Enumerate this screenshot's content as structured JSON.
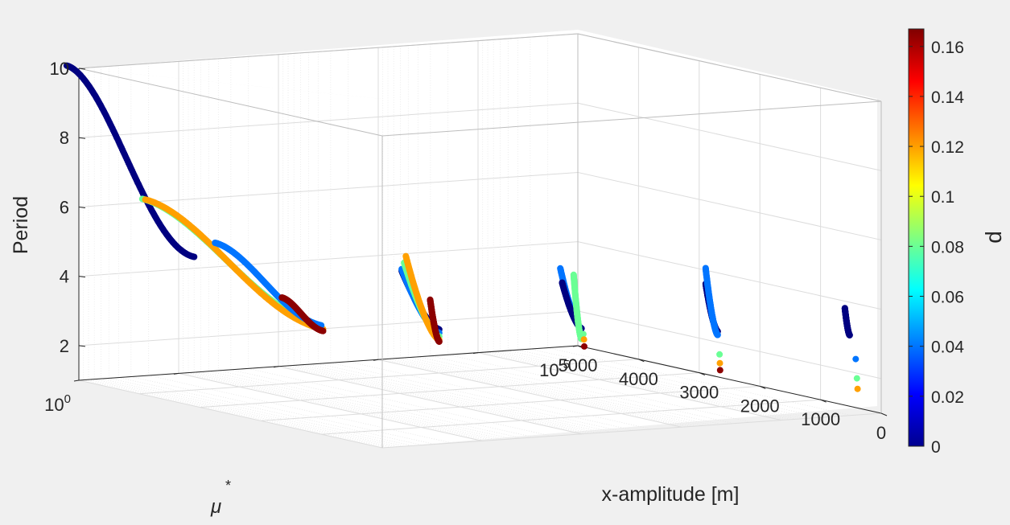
{
  "chart_data": {
    "type": "scatter3d",
    "title": "",
    "axes": {
      "x": {
        "label": "x-amplitude [m]",
        "range": [
          0,
          5000
        ],
        "ticks": [
          0,
          1000,
          2000,
          3000,
          4000,
          5000
        ],
        "tick_labels": [
          "0",
          "1000",
          "2000",
          "3000",
          "4000",
          "5000"
        ]
      },
      "y": {
        "label": "μ",
        "label_sup": "*",
        "scale": "log",
        "range_exp": [
          -5,
          0
        ],
        "ticks_exp": [
          0,
          -5
        ],
        "tick_bases": [
          "10",
          "10"
        ],
        "tick_exps": [
          "0",
          "-5"
        ]
      },
      "z": {
        "label": "Period",
        "range": [
          1,
          10
        ],
        "ticks": [
          2,
          4,
          6,
          8,
          10
        ],
        "tick_labels": [
          "2",
          "4",
          "6",
          "8",
          "10"
        ]
      }
    },
    "grid": true,
    "colorbar": {
      "label": "d",
      "range": [
        0,
        0.167
      ],
      "ticks": [
        0,
        0.02,
        0.04,
        0.06,
        0.08,
        0.1,
        0.12,
        0.14,
        0.16
      ],
      "tick_labels": [
        "0",
        "0.02",
        "0.04",
        "0.06",
        "0.08",
        "0.1",
        "0.12",
        "0.14",
        "0.16"
      ],
      "colormap": "jet"
    },
    "series": [
      {
        "name": "mu1e0-d0",
        "mu_exp": 0.0,
        "d": 0.0,
        "x_range": [
          5200,
          3100
        ],
        "p_start": 10.0,
        "p_end": 5.3,
        "shape": "s"
      },
      {
        "name": "mu1e-1-d0.08",
        "mu_exp": -1.0,
        "d": 0.08,
        "x_range": [
          5600,
          2650
        ],
        "p_start": 5.8,
        "p_end": 3.3,
        "shape": "s"
      },
      {
        "name": "mu1e-1-d0.12",
        "mu_exp": -1.0,
        "d": 0.12,
        "x_range": [
          5550,
          2620
        ],
        "p_start": 5.8,
        "p_end": 3.2,
        "shape": "s"
      },
      {
        "name": "mu1e-1-d0.04",
        "mu_exp": -1.0,
        "d": 0.04,
        "x_range": [
          4400,
          2650
        ],
        "p_start": 5.0,
        "p_end": 3.3,
        "shape": "s"
      },
      {
        "name": "mu1e-1-d0.16",
        "mu_exp": -1.0,
        "d": 0.165,
        "x_range": [
          3300,
          2620
        ],
        "p_start": 3.85,
        "p_end": 3.15,
        "shape": "s"
      },
      {
        "name": "mu1e-2-d0",
        "mu_exp": -2.0,
        "d": 0.0,
        "x_range": [
          2970,
          2350
        ],
        "p_start": 4.55,
        "p_end": 3.1,
        "shape": "c"
      },
      {
        "name": "mu1e-2-d0.04",
        "mu_exp": -2.0,
        "d": 0.04,
        "x_range": [
          2970,
          2350
        ],
        "p_start": 4.6,
        "p_end": 3.0,
        "shape": "c"
      },
      {
        "name": "mu1e-2-d0.08",
        "mu_exp": -2.0,
        "d": 0.08,
        "x_range": [
          2930,
          2350
        ],
        "p_start": 4.8,
        "p_end": 2.9,
        "shape": "c"
      },
      {
        "name": "mu1e-2-d0.12",
        "mu_exp": -2.0,
        "d": 0.12,
        "x_range": [
          2900,
          2350
        ],
        "p_start": 5.0,
        "p_end": 2.8,
        "shape": "c"
      },
      {
        "name": "mu1e-2-d0.165",
        "mu_exp": -2.0,
        "d": 0.165,
        "x_range": [
          2500,
          2350
        ],
        "p_start": 3.9,
        "p_end": 2.75,
        "shape": "c"
      },
      {
        "name": "mu1e-3-d0.04",
        "mu_exp": -3.0,
        "d": 0.04,
        "x_range": [
          2000,
          1650
        ],
        "p_start": 4.8,
        "p_end": 3.2,
        "shape": "c"
      },
      {
        "name": "mu1e-3-d0",
        "mu_exp": -3.0,
        "d": 0.0,
        "x_range": [
          1970,
          1650
        ],
        "p_start": 4.4,
        "p_end": 3.2,
        "shape": "c"
      },
      {
        "name": "mu1e-3-d0.08",
        "mu_exp": -3.0,
        "d": 0.08,
        "x_range": [
          1780,
          1650
        ],
        "p_start": 4.7,
        "p_end": 2.9,
        "shape": "c"
      },
      {
        "name": "mu1e-4-d0",
        "mu_exp": -4.0,
        "d": 0.0,
        "x_range": [
          1250,
          1050
        ],
        "p_start": 4.45,
        "p_end": 3.15,
        "shape": "c"
      },
      {
        "name": "mu1e-4-d0.04",
        "mu_exp": -4.0,
        "d": 0.04,
        "x_range": [
          1250,
          1050
        ],
        "p_start": 4.9,
        "p_end": 3.05,
        "shape": "c"
      },
      {
        "name": "mu1e-5-d0",
        "mu_exp": -5.0,
        "d": 0.0,
        "x_range": [
          600,
          520
        ],
        "p_start": 3.8,
        "p_end": 3.05,
        "shape": "c"
      }
    ],
    "points": [
      {
        "name": "pt-1",
        "mu_exp": -3.0,
        "x": 1620,
        "p": 3.05,
        "d": 0.08
      },
      {
        "name": "pt-2",
        "mu_exp": -3.0,
        "x": 1610,
        "p": 2.9,
        "d": 0.12
      },
      {
        "name": "pt-3",
        "mu_exp": -3.0,
        "x": 1605,
        "p": 2.7,
        "d": 0.165
      },
      {
        "name": "pt-4",
        "mu_exp": -4.0,
        "x": 1020,
        "p": 2.5,
        "d": 0.08
      },
      {
        "name": "pt-5",
        "mu_exp": -4.0,
        "x": 1015,
        "p": 2.25,
        "d": 0.12
      },
      {
        "name": "pt-6",
        "mu_exp": -4.0,
        "x": 1010,
        "p": 2.05,
        "d": 0.165
      },
      {
        "name": "pt-7",
        "mu_exp": -5.0,
        "x": 420,
        "p": 2.4,
        "d": 0.04
      },
      {
        "name": "pt-8",
        "mu_exp": -5.0,
        "x": 400,
        "p": 1.85,
        "d": 0.08
      },
      {
        "name": "pt-9",
        "mu_exp": -5.0,
        "x": 390,
        "p": 1.55,
        "d": 0.12
      }
    ]
  }
}
